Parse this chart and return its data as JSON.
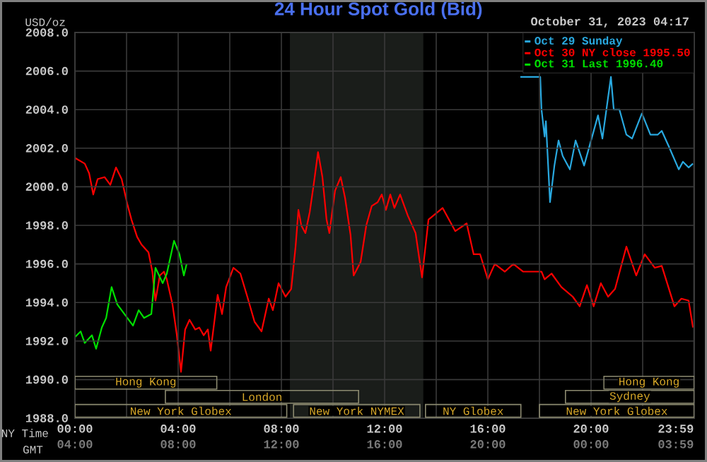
{
  "chart_data": {
    "type": "line",
    "title": "24 Hour Spot Gold (Bid)",
    "subtitle": "October 31, 2023 04:17",
    "xlabel": "NY Time",
    "x2label": "GMT",
    "ylabel": "USD/oz",
    "xlim": [
      0,
      24
    ],
    "ylim": [
      1988,
      2008
    ],
    "x2lim": [
      "2023-10-30T04:00",
      "2023-10-31T04:00"
    ],
    "xticks": [
      {
        "value": 0,
        "label": "00:00"
      },
      {
        "value": 2,
        "label": null
      },
      {
        "value": 4,
        "label": "04:00"
      },
      {
        "value": 6,
        "label": null
      },
      {
        "value": 8,
        "label": "08:00"
      },
      {
        "value": 10,
        "label": null
      },
      {
        "value": 12,
        "label": "12:00"
      },
      {
        "value": 14,
        "label": null
      },
      {
        "value": 16,
        "label": "16:00"
      },
      {
        "value": 18,
        "label": null
      },
      {
        "value": 20,
        "label": "20:00"
      },
      {
        "value": 22,
        "label": null
      },
      {
        "value": 23.983,
        "label": "23:59"
      }
    ],
    "x2ticks": [
      {
        "value": "2023-10-30T04:00",
        "label": "04:00"
      },
      {
        "value": "2023-10-30T08:00",
        "label": "08:00"
      },
      {
        "value": "2023-10-30T12:00",
        "label": "12:00"
      },
      {
        "value": "2023-10-30T16:00",
        "label": "16:00"
      },
      {
        "value": "2023-10-30T20:00",
        "label": "20:00"
      },
      {
        "value": "2023-10-31T00:00",
        "label": "00:00"
      },
      {
        "value": "2023-10-31T03:59",
        "label": "03:59"
      }
    ],
    "yticks": [
      {
        "value": 1988,
        "label": "1988.0"
      },
      {
        "value": 1990,
        "label": "1990.0"
      },
      {
        "value": 1992,
        "label": "1992.0"
      },
      {
        "value": 1994,
        "label": "1994.0"
      },
      {
        "value": 1996,
        "label": "1996.0"
      },
      {
        "value": 1998,
        "label": "1998.0"
      },
      {
        "value": 2000,
        "label": "2000.0"
      },
      {
        "value": 2002,
        "label": "2002.0"
      },
      {
        "value": 2004,
        "label": "2004.0"
      },
      {
        "value": 2006,
        "label": "2006.0"
      },
      {
        "value": 2008,
        "label": "2008.0"
      }
    ],
    "grid": true,
    "legend": "top right",
    "bands": [
      {
        "axis": "x",
        "from": 8.33,
        "to": 13.5,
        "color": "#1a1d1a"
      }
    ],
    "series": [
      {
        "name": "Oct 29 Sunday",
        "color": "#29a9e0",
        "x": [
          17.26,
          18.03,
          18.08,
          18.2,
          18.25,
          18.41,
          18.58,
          18.74,
          18.9,
          19.18,
          19.4,
          19.73,
          20.0,
          20.27,
          20.44,
          20.77,
          20.88,
          21.1,
          21.37,
          21.59,
          21.97,
          22.3,
          22.58,
          22.74,
          23.01,
          23.4,
          23.56,
          23.78,
          23.95
        ],
        "values": [
          2005.7,
          2005.7,
          2004.0,
          2002.6,
          2003.4,
          1999.2,
          2001.1,
          2002.4,
          2001.6,
          2000.9,
          2002.4,
          2001.1,
          2002.4,
          2003.7,
          2002.5,
          2005.7,
          2004.0,
          2004.0,
          2002.7,
          2002.5,
          2003.8,
          2002.7,
          2002.7,
          2002.9,
          2002.1,
          2000.9,
          2001.3,
          2001.0,
          2001.2
        ]
      },
      {
        "name": "Oct 30 NY close 1995.50",
        "color": "#ff0000",
        "x": [
          0,
          0.38,
          0.55,
          0.71,
          0.88,
          1.15,
          1.37,
          1.59,
          1.81,
          2.03,
          2.19,
          2.41,
          2.58,
          2.85,
          3.0,
          3.12,
          3.29,
          3.45,
          3.56,
          3.78,
          3.95,
          4.11,
          4.27,
          4.44,
          4.66,
          4.82,
          4.99,
          5.15,
          5.26,
          5.42,
          5.53,
          5.7,
          5.86,
          6.14,
          6.41,
          6.68,
          6.96,
          7.23,
          7.51,
          7.67,
          7.89,
          8.16,
          8.38,
          8.55,
          8.66,
          8.77,
          8.93,
          9.1,
          9.26,
          9.42,
          9.59,
          9.75,
          9.86,
          10.08,
          10.3,
          10.47,
          10.68,
          10.8,
          11.07,
          11.29,
          11.5,
          11.73,
          11.89,
          12.05,
          12.22,
          12.38,
          12.6,
          12.9,
          13.2,
          13.45,
          13.7,
          14.25,
          14.74,
          15.18,
          15.45,
          15.7,
          16.0,
          16.27,
          16.66,
          16.99,
          17.37,
          18.08,
          18.2,
          18.47,
          18.85,
          19.29,
          19.56,
          19.84,
          20.1,
          20.38,
          20.66,
          20.93,
          21.37,
          21.75,
          22.08,
          22.47,
          22.74,
          23.23,
          23.5,
          23.78,
          23.95
        ],
        "values": [
          2001.5,
          2001.2,
          2000.7,
          1999.6,
          2000.4,
          2000.5,
          2000.1,
          2001.0,
          2000.4,
          1999.1,
          1998.3,
          1997.4,
          1997.0,
          1996.6,
          1995.6,
          1994.1,
          1995.4,
          1995.6,
          1995.2,
          1993.9,
          1992.3,
          1990.4,
          1992.6,
          1993.1,
          1992.6,
          1992.7,
          1992.3,
          1992.6,
          1991.5,
          1993.2,
          1994.4,
          1993.4,
          1994.8,
          1995.8,
          1995.5,
          1994.3,
          1993.0,
          1992.5,
          1994.2,
          1993.6,
          1995.0,
          1994.3,
          1994.7,
          1996.9,
          1998.8,
          1998.0,
          1997.6,
          1998.7,
          2000.2,
          2001.8,
          2000.5,
          1998.3,
          1997.6,
          1999.8,
          2000.5,
          1999.4,
          1997.5,
          1995.4,
          1996.1,
          1998.0,
          1999.0,
          1999.2,
          1999.6,
          1998.8,
          1999.6,
          1998.9,
          1999.6,
          1998.5,
          1997.6,
          1995.3,
          1998.3,
          1998.9,
          1997.7,
          1998.1,
          1996.5,
          1996.5,
          1995.2,
          1996.0,
          1995.6,
          1996.0,
          1995.6,
          1995.6,
          1995.2,
          1995.5,
          1994.8,
          1994.3,
          1993.8,
          1994.9,
          1993.8,
          1995.0,
          1994.3,
          1994.7,
          1996.9,
          1995.4,
          1996.5,
          1995.8,
          1995.9,
          1993.8,
          1994.2,
          1994.1,
          1992.7
        ]
      },
      {
        "name": "Oct 31 Last 1996.40",
        "color": "#00e000",
        "x": [
          0,
          0.22,
          0.38,
          0.66,
          0.82,
          1.04,
          1.21,
          1.42,
          1.64,
          1.92,
          2.25,
          2.47,
          2.68,
          2.96,
          3.12,
          3.4,
          3.56,
          3.84,
          4.05,
          4.22,
          4.33
        ],
        "values": [
          1992.2,
          1992.5,
          1991.9,
          1992.3,
          1991.6,
          1992.7,
          1993.2,
          1994.8,
          1993.9,
          1993.4,
          1992.8,
          1993.6,
          1993.2,
          1993.4,
          1995.8,
          1995.0,
          1995.5,
          1997.2,
          1996.5,
          1995.4,
          1996.0
        ]
      }
    ],
    "annotations": [
      "Hong Kong",
      "Hong Kong",
      "London",
      "Sydney",
      "New York Globex",
      "New York NYMEX",
      "NY Globex",
      "New York Globex"
    ]
  }
}
